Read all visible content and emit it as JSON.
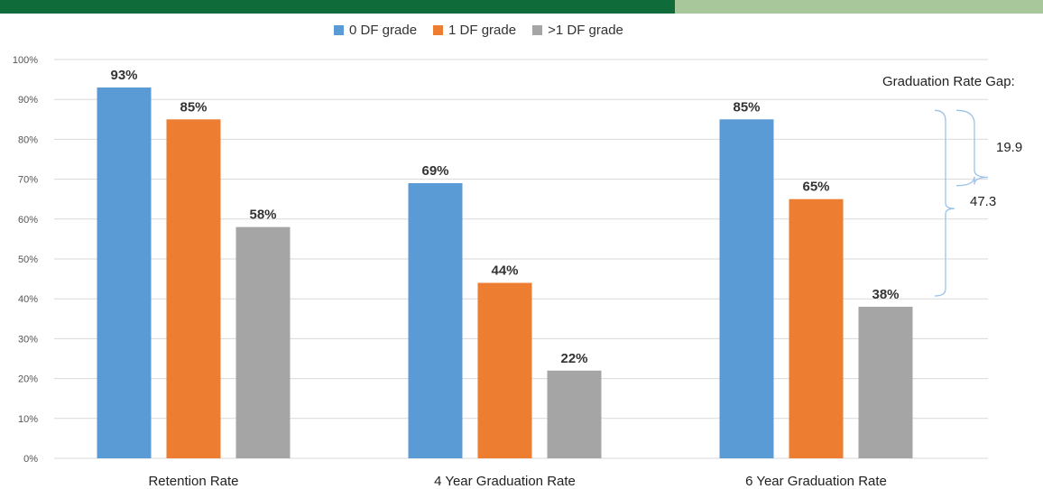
{
  "colors": {
    "bar_top_dark": "#0f6b3a",
    "bar_top_light": "#a8c79a",
    "series": [
      "#5b9bd5",
      "#ed7d31",
      "#a5a5a5"
    ],
    "bracket": "#9dc3e6",
    "grid": "#d9d9d9"
  },
  "chart_data": {
    "type": "bar",
    "categories": [
      "Retention Rate",
      "4 Year Graduation Rate",
      "6 Year Graduation Rate"
    ],
    "series": [
      {
        "name": "0 DF grade",
        "values": [
          93,
          69,
          85
        ],
        "labels": [
          "93%",
          "69%",
          "85%"
        ]
      },
      {
        "name": "1 DF grade",
        "values": [
          85,
          44,
          65
        ],
        "labels": [
          "85%",
          "44%",
          "65%"
        ]
      },
      {
        "name": ">1 DF grade",
        "values": [
          58,
          22,
          38
        ],
        "labels": [
          "58%",
          "22%",
          "38%"
        ]
      }
    ],
    "ylim": [
      0,
      100
    ],
    "yticks": [
      "0%",
      "10%",
      "20%",
      "30%",
      "40%",
      "50%",
      "60%",
      "70%",
      "80%",
      "90%",
      "100%"
    ],
    "grid": true,
    "legend_position": "top-center",
    "annotations": {
      "title": "Graduation Rate Gap:",
      "gap_small": "19.9",
      "gap_large": "47.3"
    }
  }
}
